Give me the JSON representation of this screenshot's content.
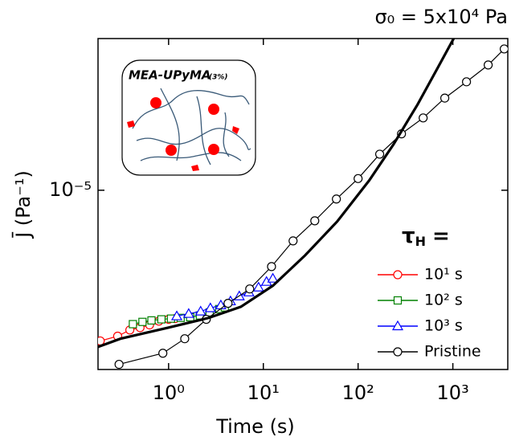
{
  "chart_data": {
    "type": "scatter",
    "annotation": "σ₀ = 5x10⁴ Pa",
    "x_label": "Time (s)",
    "y_label": "J̄ (Pa⁻¹)",
    "xscale": "log",
    "yscale": "log",
    "xlim": [
      0.18,
      3800
    ],
    "ylim": [
      1.75e-06,
      4.37e-05
    ],
    "xticks": [
      {
        "value": 1,
        "label": "10⁰"
      },
      {
        "value": 10,
        "label": "10¹"
      },
      {
        "value": 100,
        "label": "10²"
      },
      {
        "value": 1000,
        "label": "10³"
      }
    ],
    "yticks": [
      {
        "value": 1e-05,
        "label": "10⁻⁵"
      }
    ],
    "legend": "lower right",
    "legend_title": {
      "symbol": "τ",
      "subscript": "H",
      "text": "="
    },
    "inset": {
      "title": "MEA-UPyMA",
      "subtitle": "(3%)"
    },
    "series": [
      {
        "name": "10¹ s",
        "color": "#ff0000",
        "marker": "circle",
        "x": [
          0.19,
          0.29,
          0.39,
          0.5,
          0.63,
          0.79,
          1.0,
          1.17
        ],
        "values": [
          2.31e-06,
          2.42e-06,
          2.57e-06,
          2.63e-06,
          2.7e-06,
          2.8e-06,
          2.85e-06,
          2.87e-06
        ]
      },
      {
        "name": "10² s",
        "color": "#008000",
        "marker": "square",
        "x": [
          0.42,
          0.53,
          0.66,
          0.84,
          1.06,
          1.34,
          1.69,
          2.14,
          2.71,
          3.42,
          3.92
        ],
        "values": [
          2.72e-06,
          2.78e-06,
          2.82e-06,
          2.85e-06,
          2.87e-06,
          2.89e-06,
          2.91e-06,
          2.96e-06,
          3.05e-06,
          3.15e-06,
          3.2e-06
        ]
      },
      {
        "name": "10³ s",
        "color": "#0000ff",
        "marker": "triangle",
        "x": [
          1.22,
          1.63,
          2.18,
          2.76,
          3.56,
          4.5,
          5.57,
          7.04,
          8.9,
          10.8,
          12.6
        ],
        "values": [
          2.94e-06,
          3.01e-06,
          3.08e-06,
          3.18e-06,
          3.27e-06,
          3.4e-06,
          3.57e-06,
          3.71e-06,
          3.89e-06,
          4.11e-06,
          4.24e-06
        ]
      },
      {
        "name": "Pristine",
        "color": "#000000",
        "marker": "circle",
        "x": [
          0.3,
          0.87,
          1.48,
          2.5,
          4.24,
          7.18,
          12.2,
          20.6,
          34.9,
          59.0,
          100,
          169,
          287,
          486,
          822,
          1393,
          2360,
          3485
        ],
        "values": [
          1.84e-06,
          2.05e-06,
          2.36e-06,
          2.85e-06,
          3.33e-06,
          3.83e-06,
          4.76e-06,
          6.11e-06,
          7.43e-06,
          9.18e-06,
          1.12e-05,
          1.42e-05,
          1.73e-05,
          2.02e-05,
          2.45e-05,
          2.87e-05,
          3.38e-05,
          3.95e-05
        ]
      },
      {
        "color": "#000000",
        "x": [
          0.18,
          0.31,
          1,
          2.65,
          5.79,
          12.6,
          27.6,
          60.2,
          131,
          236,
          424,
          690,
          1020
        ],
        "values": [
          2.18e-06,
          2.36e-06,
          2.63e-06,
          2.89e-06,
          3.22e-06,
          3.95e-06,
          5.31e-06,
          7.38e-06,
          1.1e-05,
          1.56e-05,
          2.3e-05,
          3.28e-05,
          4.37e-05
        ]
      }
    ]
  }
}
